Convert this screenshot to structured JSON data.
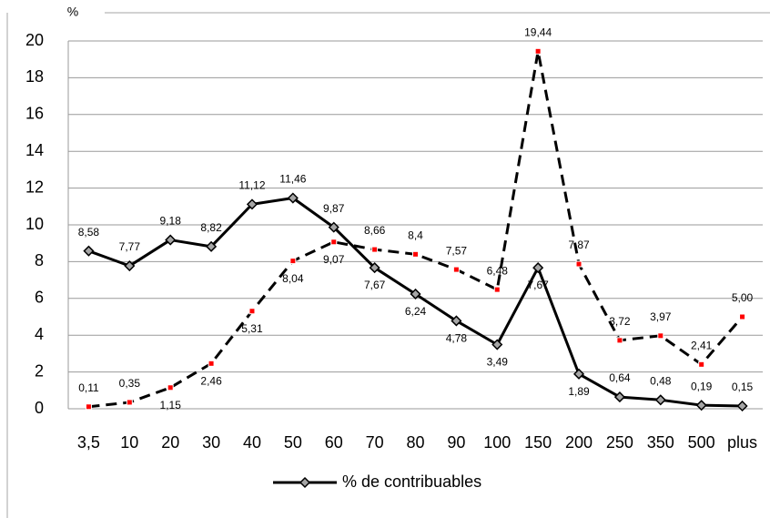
{
  "chart_data": {
    "type": "line",
    "y_label": "%",
    "categories": [
      "3,5",
      "10",
      "20",
      "30",
      "40",
      "50",
      "60",
      "70",
      "80",
      "90",
      "100",
      "150",
      "200",
      "250",
      "350",
      "500",
      "plus"
    ],
    "series": [
      {
        "name": "% de contribuables",
        "color": "#000000",
        "marker": "diamond",
        "marker_color": "#a6a6a6",
        "dashed": false,
        "values": [
          8.58,
          7.77,
          9.18,
          8.82,
          11.12,
          11.46,
          9.87,
          7.67,
          6.24,
          4.78,
          3.49,
          7.67,
          1.89,
          0.64,
          0.48,
          0.19,
          0.15
        ],
        "value_labels": [
          "8,58",
          "7,77",
          "9,18",
          "8,82",
          "11,12",
          "11,46",
          "9,87",
          "7,67",
          "6,24",
          "4,78",
          "3,49",
          "7,67",
          "1,89",
          "0,64",
          "0,48",
          "0,19",
          "0,15"
        ]
      },
      {
        "color": "#000000",
        "marker": "square",
        "marker_color": "#ff0000",
        "dashed": true,
        "values": [
          0.11,
          0.35,
          1.15,
          2.46,
          5.31,
          8.04,
          9.07,
          8.66,
          8.4,
          7.57,
          6.48,
          19.44,
          7.87,
          3.72,
          3.97,
          2.41,
          5.0
        ],
        "value_labels": [
          "0,11",
          "0,35",
          "1,15",
          "2,46",
          "5,31",
          "8,04",
          "9,07",
          "8,66",
          "8,4",
          "7,57",
          "6,48",
          "19,44",
          "7,87",
          "3,72",
          "3,97",
          "2,41",
          "5,00"
        ]
      }
    ],
    "ylim": [
      0,
      20
    ],
    "yticks": [
      0,
      2,
      4,
      6,
      8,
      10,
      12,
      14,
      16,
      18,
      20
    ],
    "grid": true,
    "legend": "bottom"
  }
}
